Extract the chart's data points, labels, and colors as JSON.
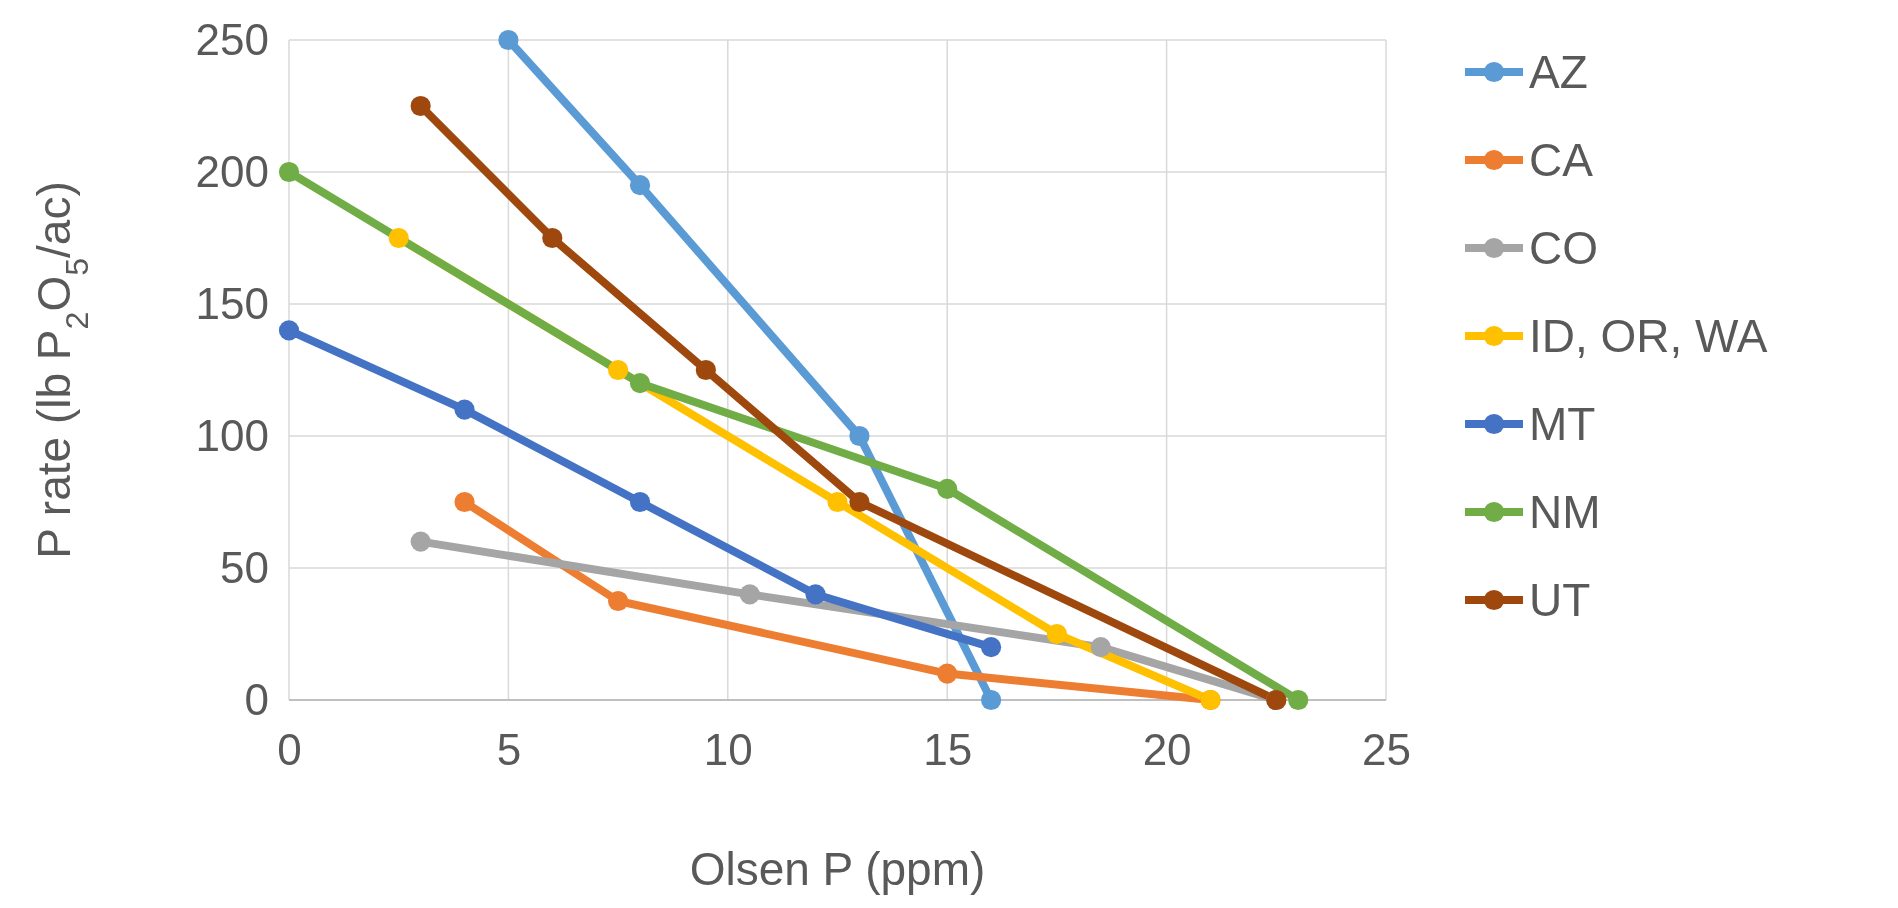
{
  "chart_data": {
    "type": "line",
    "xlabel": "Olsen P (ppm)",
    "ylabel": "P  rate (lb P$_{2}$O$_{5}$/ac)",
    "xlim": [
      0,
      25
    ],
    "ylim": [
      0,
      250
    ],
    "xticks": [
      0,
      5,
      10,
      15,
      20,
      25
    ],
    "yticks": [
      0,
      50,
      100,
      150,
      200,
      250
    ],
    "grid": true,
    "legend": "right",
    "marker": "circle",
    "series": [
      {
        "name": "AZ",
        "color": "#5b9bd5",
        "x": [
          5,
          8,
          13,
          16
        ],
        "values": [
          250,
          195,
          100,
          0
        ]
      },
      {
        "name": "CA",
        "color": "#ed7d31",
        "x": [
          4,
          7.5,
          15,
          21
        ],
        "values": [
          75,
          37.5,
          10,
          0
        ]
      },
      {
        "name": "CO",
        "color": "#a5a5a5",
        "x": [
          3,
          10.5,
          18.5,
          22.5
        ],
        "values": [
          60,
          40,
          20,
          0
        ]
      },
      {
        "name": "ID, OR, WA",
        "color": "#ffc000",
        "x": [
          2.5,
          7.5,
          12.5,
          17.5,
          21
        ],
        "values": [
          175,
          125,
          75,
          25,
          0
        ]
      },
      {
        "name": "MT",
        "color": "#4472c4",
        "x": [
          0,
          4,
          8,
          12,
          16
        ],
        "values": [
          140,
          110,
          75,
          40,
          20
        ]
      },
      {
        "name": "NM",
        "color": "#70ad47",
        "x": [
          0,
          8,
          15,
          23
        ],
        "values": [
          200,
          120,
          80,
          0
        ]
      },
      {
        "name": "UT",
        "color": "#9e480e",
        "x": [
          3,
          6,
          9.5,
          13,
          22.5
        ],
        "values": [
          225,
          175,
          125,
          75,
          0
        ]
      }
    ]
  }
}
